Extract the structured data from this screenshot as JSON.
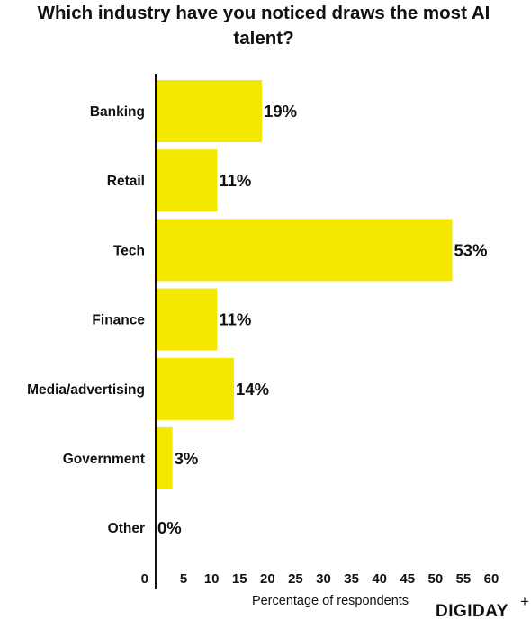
{
  "chart_data": {
    "type": "bar",
    "orientation": "horizontal",
    "title": "Which industry have you noticed draws the most AI talent?",
    "categories": [
      "Banking",
      "Retail",
      "Tech",
      "Finance",
      "Media/advertising",
      "Government",
      "Other"
    ],
    "values": [
      19,
      11,
      53,
      11,
      14,
      3,
      0
    ],
    "value_labels": [
      "19%",
      "11%",
      "53%",
      "11%",
      "14%",
      "3%",
      "0%"
    ],
    "xlabel": "Percentage of respondents",
    "ylabel": "",
    "xlim": [
      0,
      60
    ],
    "xticks": [
      0,
      5,
      10,
      15,
      20,
      25,
      30,
      35,
      40,
      45,
      50,
      55,
      60
    ],
    "grid": false,
    "bar_color": "#f5e800"
  },
  "branding": {
    "logo_text": "DIGIDAY",
    "logo_mark": "+"
  }
}
